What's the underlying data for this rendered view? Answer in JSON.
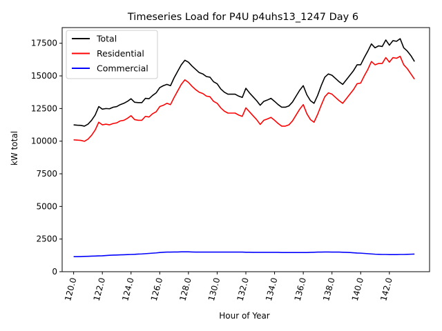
{
  "chart_data": {
    "type": "line",
    "title": "Timeseries Load for P4U p4uhs13_1247  Day 6",
    "xlabel": "Hour of Year",
    "ylabel": "kW total",
    "xlim": [
      119.2,
      144.8
    ],
    "ylim": [
      0,
      18700
    ],
    "x_ticks": [
      120,
      122,
      124,
      126,
      128,
      130,
      132,
      134,
      136,
      138,
      140,
      142
    ],
    "x_tick_labels": [
      "120.0",
      "122.0",
      "124.0",
      "126.0",
      "128.0",
      "130.0",
      "132.0",
      "134.0",
      "136.0",
      "138.0",
      "140.0",
      "142.0"
    ],
    "y_ticks": [
      0,
      2500,
      5000,
      7500,
      10000,
      12500,
      15000,
      17500
    ],
    "y_tick_labels": [
      "0",
      "2500",
      "5000",
      "7500",
      "10000",
      "12500",
      "15000",
      "17500"
    ],
    "grid": false,
    "legend_position": "top-left",
    "x": [
      120.0,
      120.25,
      120.5,
      120.75,
      121.0,
      121.25,
      121.5,
      121.75,
      122.0,
      122.25,
      122.5,
      122.75,
      123.0,
      123.25,
      123.5,
      123.75,
      124.0,
      124.25,
      124.5,
      124.75,
      125.0,
      125.25,
      125.5,
      125.75,
      126.0,
      126.25,
      126.5,
      126.75,
      127.0,
      127.25,
      127.5,
      127.75,
      128.0,
      128.25,
      128.5,
      128.75,
      129.0,
      129.25,
      129.5,
      129.75,
      130.0,
      130.25,
      130.5,
      130.75,
      131.0,
      131.25,
      131.5,
      131.75,
      132.0,
      132.25,
      132.5,
      132.75,
      133.0,
      133.25,
      133.5,
      133.75,
      134.0,
      134.25,
      134.5,
      134.75,
      135.0,
      135.25,
      135.5,
      135.75,
      136.0,
      136.25,
      136.5,
      136.75,
      137.0,
      137.25,
      137.5,
      137.75,
      138.0,
      138.25,
      138.5,
      138.75,
      139.0,
      139.25,
      139.5,
      139.75,
      140.0,
      140.25,
      140.5,
      140.75,
      141.0,
      141.25,
      141.5,
      141.75,
      142.0,
      142.25,
      142.5,
      142.75,
      143.0,
      143.25,
      143.5,
      143.75
    ],
    "series": [
      {
        "name": "Total",
        "color": "#000000",
        "values": [
          11250,
          11220,
          11210,
          11150,
          11300,
          11600,
          12000,
          12650,
          12450,
          12500,
          12480,
          12600,
          12650,
          12800,
          12900,
          13050,
          13250,
          12980,
          12950,
          12950,
          13280,
          13250,
          13500,
          13700,
          14100,
          14250,
          14350,
          14250,
          14850,
          15350,
          15850,
          16200,
          16050,
          15750,
          15500,
          15250,
          15150,
          14950,
          14900,
          14550,
          14400,
          14000,
          13750,
          13600,
          13600,
          13600,
          13450,
          13350,
          14050,
          13700,
          13400,
          13100,
          12750,
          13050,
          13150,
          13280,
          13050,
          12800,
          12600,
          12600,
          12700,
          13000,
          13450,
          13900,
          14250,
          13550,
          13100,
          12900,
          13500,
          14250,
          14900,
          15150,
          15050,
          14800,
          14550,
          14350,
          14700,
          15050,
          15400,
          15850,
          15850,
          16400,
          16900,
          17450,
          17150,
          17300,
          17250,
          17750,
          17350,
          17700,
          17650,
          17850,
          17150,
          16900,
          16550,
          16100
        ]
      },
      {
        "name": "Residential",
        "color": "#ff0000",
        "values": [
          10100,
          10080,
          10060,
          9990,
          10150,
          10450,
          10850,
          11450,
          11250,
          11300,
          11250,
          11350,
          11400,
          11550,
          11600,
          11750,
          11950,
          11650,
          11600,
          11600,
          11900,
          11850,
          12100,
          12250,
          12650,
          12750,
          12900,
          12800,
          13350,
          13850,
          14350,
          14700,
          14500,
          14200,
          13950,
          13750,
          13650,
          13450,
          13400,
          13050,
          12900,
          12550,
          12300,
          12150,
          12150,
          12150,
          12000,
          11900,
          12550,
          12250,
          11950,
          11650,
          11280,
          11600,
          11700,
          11820,
          11600,
          11350,
          11150,
          11150,
          11250,
          11550,
          12000,
          12450,
          12800,
          12100,
          11650,
          11450,
          12050,
          12750,
          13400,
          13700,
          13600,
          13350,
          13100,
          12900,
          13250,
          13600,
          13950,
          14400,
          14450,
          15000,
          15500,
          16100,
          15850,
          15950,
          15950,
          16400,
          16050,
          16400,
          16350,
          16500,
          15850,
          15550,
          15150,
          14750
        ]
      },
      {
        "name": "Commercial",
        "color": "#0000ff",
        "values": [
          1150,
          1150,
          1160,
          1170,
          1180,
          1190,
          1200,
          1210,
          1220,
          1240,
          1260,
          1270,
          1280,
          1290,
          1300,
          1310,
          1320,
          1330,
          1350,
          1360,
          1380,
          1400,
          1420,
          1440,
          1470,
          1490,
          1500,
          1500,
          1510,
          1510,
          1520,
          1520,
          1520,
          1510,
          1500,
          1500,
          1500,
          1500,
          1500,
          1500,
          1500,
          1500,
          1500,
          1500,
          1500,
          1500,
          1500,
          1500,
          1490,
          1490,
          1480,
          1480,
          1480,
          1480,
          1480,
          1480,
          1480,
          1480,
          1470,
          1470,
          1470,
          1470,
          1470,
          1470,
          1470,
          1470,
          1480,
          1490,
          1500,
          1500,
          1510,
          1510,
          1500,
          1500,
          1500,
          1490,
          1480,
          1470,
          1450,
          1430,
          1420,
          1400,
          1380,
          1360,
          1340,
          1330,
          1320,
          1320,
          1310,
          1310,
          1310,
          1320,
          1320,
          1330,
          1340,
          1350
        ]
      }
    ]
  }
}
